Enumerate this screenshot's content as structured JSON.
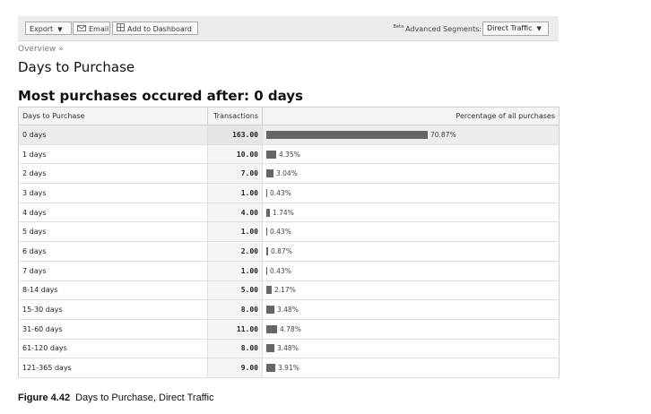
{
  "toolbar": {
    "export_label": "Export",
    "email_label": "Email",
    "dashboard_label": "Add to Dashboard",
    "beta_label": "Beta",
    "segments_label": "Advanced Segments:",
    "segment_value": "Direct Traffic"
  },
  "breadcrumb": "Overview »",
  "page_title": "Days to Purchase",
  "summary": "Most purchases occured after: 0 days",
  "table": {
    "headers": [
      "Days to Purchase",
      "Transactions",
      "Percentage of all purchases"
    ],
    "rows": [
      {
        "label": "0 days",
        "transactions": "163.00",
        "pct_label": "70.87%",
        "pct": 70.87
      },
      {
        "label": "1 days",
        "transactions": "10.00",
        "pct_label": "4.35%",
        "pct": 4.35
      },
      {
        "label": "2 days",
        "transactions": "7.00",
        "pct_label": "3.04%",
        "pct": 3.04
      },
      {
        "label": "3 days",
        "transactions": "1.00",
        "pct_label": "0.43%",
        "pct": 0.43
      },
      {
        "label": "4 days",
        "transactions": "4.00",
        "pct_label": "1.74%",
        "pct": 1.74
      },
      {
        "label": "5 days",
        "transactions": "1.00",
        "pct_label": "0.43%",
        "pct": 0.43
      },
      {
        "label": "6 days",
        "transactions": "2.00",
        "pct_label": "0.87%",
        "pct": 0.87
      },
      {
        "label": "7 days",
        "transactions": "1.00",
        "pct_label": "0.43%",
        "pct": 0.43
      },
      {
        "label": "8-14 days",
        "transactions": "5.00",
        "pct_label": "2.17%",
        "pct": 2.17
      },
      {
        "label": "15-30 days",
        "transactions": "8.00",
        "pct_label": "3.48%",
        "pct": 3.48
      },
      {
        "label": "31-60 days",
        "transactions": "11.00",
        "pct_label": "4.78%",
        "pct": 4.78
      },
      {
        "label": "61-120 days",
        "transactions": "8.00",
        "pct_label": "3.48%",
        "pct": 3.48
      },
      {
        "label": "121-365 days",
        "transactions": "9.00",
        "pct_label": "3.91%",
        "pct": 3.91
      }
    ]
  },
  "caption": {
    "figure": "Figure 4.42",
    "text": "Days to Purchase, Direct Traffic"
  },
  "colors": {
    "bar": "#666666"
  }
}
